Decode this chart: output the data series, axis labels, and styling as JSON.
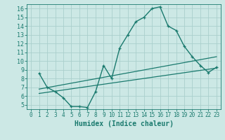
{
  "xlabel": "Humidex (Indice chaleur)",
  "xlim": [
    -0.5,
    23.5
  ],
  "ylim": [
    4.5,
    16.5
  ],
  "xticks": [
    0,
    1,
    2,
    3,
    4,
    5,
    6,
    7,
    8,
    9,
    10,
    11,
    12,
    13,
    14,
    15,
    16,
    17,
    18,
    19,
    20,
    21,
    22,
    23
  ],
  "yticks": [
    5,
    6,
    7,
    8,
    9,
    10,
    11,
    12,
    13,
    14,
    15,
    16
  ],
  "bg_color": "#cce8e5",
  "line_color": "#1a7a6e",
  "grid_color": "#aacfcc",
  "curve1_x": [
    1,
    2,
    3,
    4,
    5,
    6,
    7,
    8,
    9,
    10,
    11,
    12,
    13,
    14,
    15,
    16,
    17,
    18,
    19,
    20,
    21,
    22,
    23
  ],
  "curve1_y": [
    8.6,
    7.0,
    6.5,
    5.8,
    4.8,
    4.8,
    4.7,
    6.5,
    9.5,
    8.0,
    11.5,
    13.0,
    14.5,
    15.0,
    16.0,
    16.2,
    14.0,
    13.5,
    11.7,
    10.5,
    9.5,
    8.7,
    9.3
  ],
  "line2_x": [
    1,
    23
  ],
  "line2_y": [
    6.8,
    10.5
  ],
  "line3_x": [
    1,
    23
  ],
  "line3_y": [
    6.3,
    9.2
  ]
}
